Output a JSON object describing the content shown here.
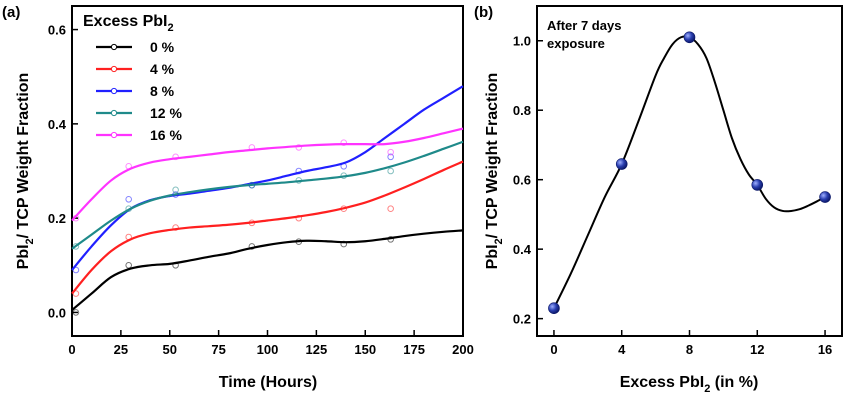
{
  "chart_data": [
    {
      "panel_label": "(a)",
      "type": "line",
      "xlabel": "Time (Hours)",
      "ylabel": {
        "prefix": "PbI",
        "sub": "2",
        "suffix": "/ TCP Weight Fraction"
      },
      "xlim": [
        0,
        200
      ],
      "ylim": [
        -0.05,
        0.65
      ],
      "xticks": [
        0,
        25,
        50,
        75,
        100,
        125,
        150,
        175,
        200
      ],
      "yticks": [
        0.0,
        0.2,
        0.4,
        0.6
      ],
      "ytick_labels": [
        "0.0",
        "0.2",
        "0.4",
        "0.6"
      ],
      "legend": {
        "title_prefix": "Excess PbI",
        "title_sub": "2",
        "position": "top-left"
      },
      "series": [
        {
          "name": "0 %",
          "color": "#000000",
          "x": [
            2,
            29,
            53,
            92,
            116,
            139,
            163
          ],
          "y": [
            0.0,
            0.1,
            0.1,
            0.14,
            0.15,
            0.145,
            0.155
          ],
          "curve_x": [
            0,
            10,
            20,
            30,
            40,
            50,
            60,
            70,
            80,
            90,
            100,
            110,
            120,
            130,
            140,
            150,
            160,
            170,
            180,
            190,
            200
          ],
          "curve_y": [
            0.005,
            0.04,
            0.075,
            0.093,
            0.1,
            0.103,
            0.11,
            0.118,
            0.125,
            0.135,
            0.143,
            0.149,
            0.152,
            0.151,
            0.149,
            0.151,
            0.156,
            0.162,
            0.167,
            0.171,
            0.174
          ]
        },
        {
          "name": "4 %",
          "color": "#ff2020",
          "x": [
            2,
            29,
            53,
            92,
            116,
            139,
            163
          ],
          "y": [
            0.04,
            0.16,
            0.18,
            0.19,
            0.2,
            0.22,
            0.22
          ],
          "curve_x": [
            0,
            10,
            20,
            30,
            40,
            50,
            60,
            70,
            80,
            90,
            100,
            110,
            120,
            130,
            140,
            150,
            160,
            170,
            180,
            190,
            200
          ],
          "curve_y": [
            0.04,
            0.09,
            0.13,
            0.155,
            0.168,
            0.175,
            0.18,
            0.183,
            0.186,
            0.19,
            0.195,
            0.2,
            0.206,
            0.213,
            0.222,
            0.233,
            0.248,
            0.265,
            0.283,
            0.302,
            0.32
          ]
        },
        {
          "name": "8 %",
          "color": "#2020ff",
          "x": [
            2,
            29,
            53,
            92,
            116,
            139,
            163
          ],
          "y": [
            0.09,
            0.24,
            0.25,
            0.27,
            0.3,
            0.31,
            0.33
          ],
          "curve_x": [
            0,
            10,
            20,
            30,
            40,
            50,
            60,
            70,
            80,
            90,
            100,
            110,
            120,
            130,
            140,
            150,
            160,
            170,
            180,
            190,
            200
          ],
          "curve_y": [
            0.09,
            0.14,
            0.185,
            0.22,
            0.238,
            0.247,
            0.252,
            0.258,
            0.264,
            0.272,
            0.28,
            0.29,
            0.3,
            0.308,
            0.318,
            0.34,
            0.37,
            0.4,
            0.43,
            0.455,
            0.48
          ]
        },
        {
          "name": "12 %",
          "color": "#1f8a8a",
          "x": [
            2,
            29,
            53,
            92,
            116,
            139,
            163
          ],
          "y": [
            0.14,
            0.22,
            0.26,
            0.27,
            0.28,
            0.29,
            0.3
          ],
          "curve_x": [
            0,
            10,
            20,
            30,
            40,
            50,
            60,
            70,
            80,
            90,
            100,
            110,
            120,
            130,
            140,
            150,
            160,
            170,
            180,
            190,
            200
          ],
          "curve_y": [
            0.135,
            0.165,
            0.195,
            0.22,
            0.237,
            0.248,
            0.255,
            0.261,
            0.266,
            0.27,
            0.273,
            0.276,
            0.28,
            0.284,
            0.289,
            0.296,
            0.306,
            0.318,
            0.332,
            0.347,
            0.362
          ]
        },
        {
          "name": "16 %",
          "color": "#ff33ff",
          "x": [
            2,
            29,
            53,
            92,
            116,
            139,
            163
          ],
          "y": [
            0.2,
            0.31,
            0.33,
            0.35,
            0.35,
            0.36,
            0.34
          ],
          "curve_x": [
            0,
            10,
            20,
            30,
            40,
            50,
            60,
            70,
            80,
            90,
            100,
            110,
            120,
            130,
            140,
            150,
            160,
            170,
            180,
            190,
            200
          ],
          "curve_y": [
            0.195,
            0.24,
            0.28,
            0.305,
            0.318,
            0.325,
            0.33,
            0.335,
            0.34,
            0.344,
            0.348,
            0.351,
            0.354,
            0.356,
            0.357,
            0.357,
            0.357,
            0.362,
            0.37,
            0.38,
            0.39
          ]
        }
      ]
    },
    {
      "panel_label": "(b)",
      "type": "line",
      "annotation": [
        "After 7 days",
        "exposure"
      ],
      "xlabel": {
        "prefix": "Excess PbI",
        "sub": "2",
        "suffix": " (in %)"
      },
      "ylabel": {
        "prefix": "PbI",
        "sub": "2",
        "suffix": "/ TCP Weight Fraction"
      },
      "xlim": [
        -1,
        17
      ],
      "ylim": [
        0.15,
        1.1
      ],
      "xticks": [
        0,
        4,
        8,
        12,
        16
      ],
      "yticks": [
        0.2,
        0.4,
        0.6,
        0.8,
        1.0
      ],
      "ytick_labels": [
        "0.2",
        "0.4",
        "0.6",
        "0.8",
        "1.0"
      ],
      "point_color": "#2a3fb0",
      "line_color": "#000000",
      "x": [
        0,
        4,
        8,
        12,
        16
      ],
      "y": [
        0.23,
        0.645,
        1.01,
        0.585,
        0.55
      ],
      "curve_x": [
        0,
        1,
        2,
        3,
        4,
        5,
        6,
        6.5,
        7,
        7.5,
        8,
        8.5,
        9,
        9.5,
        10,
        10.5,
        11,
        11.5,
        12,
        12.5,
        13,
        13.5,
        14,
        14.5,
        15,
        15.5,
        16
      ],
      "curve_y": [
        0.23,
        0.33,
        0.44,
        0.55,
        0.645,
        0.77,
        0.9,
        0.95,
        0.99,
        1.01,
        1.01,
        0.99,
        0.95,
        0.88,
        0.8,
        0.72,
        0.66,
        0.615,
        0.585,
        0.545,
        0.52,
        0.51,
        0.51,
        0.515,
        0.525,
        0.537,
        0.55
      ]
    }
  ]
}
